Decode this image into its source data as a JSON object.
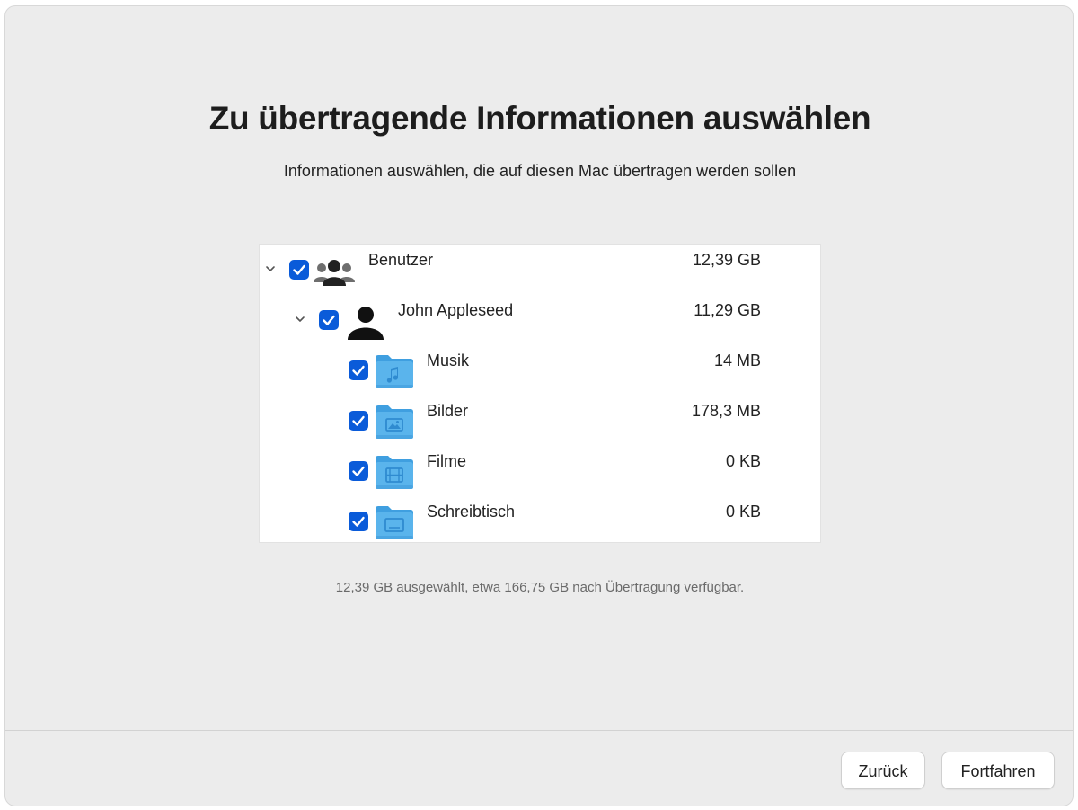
{
  "header": {
    "title": "Zu übertragende Informationen auswählen",
    "subtitle": "Informationen auswählen, die auf diesen Mac übertragen werden sollen"
  },
  "items": [
    {
      "label": "Benutzer",
      "size": "12,39 GB",
      "checked": true,
      "expanded": true,
      "icon": "users-group-icon"
    },
    {
      "label": "John Appleseed",
      "size": "11,29 GB",
      "checked": true,
      "expanded": true,
      "icon": "user-icon"
    },
    {
      "label": "Musik",
      "size": "14 MB",
      "checked": true,
      "icon": "music-folder-icon"
    },
    {
      "label": "Bilder",
      "size": "178,3 MB",
      "checked": true,
      "icon": "pictures-folder-icon"
    },
    {
      "label": "Filme",
      "size": "0 KB",
      "checked": true,
      "icon": "movies-folder-icon"
    },
    {
      "label": "Schreibtisch",
      "size": "0 KB",
      "checked": true,
      "icon": "desktop-folder-icon"
    }
  ],
  "summary": "12,39 GB ausgewählt, etwa 166,75 GB nach Übertragung verfügbar.",
  "buttons": {
    "back": "Zurück",
    "continue": "Fortfahren"
  },
  "colors": {
    "accent": "#0a5bd9",
    "folder": "#5ab4ec",
    "background": "#ececec"
  }
}
